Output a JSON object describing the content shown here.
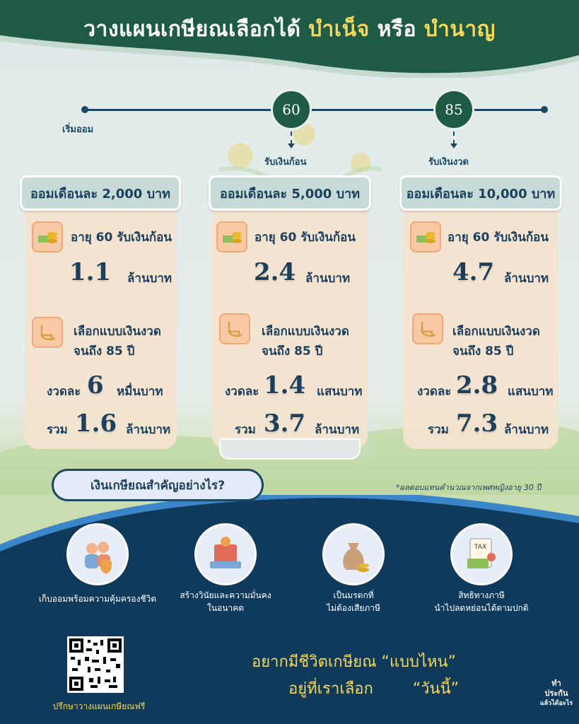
{
  "header": {
    "title_prefix": "วางแผนเกษียณเลือกได้",
    "option_a": "บำเน็จ",
    "connector": "หรือ",
    "option_b": "บำนาญ"
  },
  "timeline": {
    "start_label": "เริ่มออม",
    "age_lump": "60",
    "lump_label": "รับเงินก้อน",
    "age_annuity": "85",
    "annuity_label": "รับเงินงวด"
  },
  "plans": [
    {
      "monthly_label": "ออมเดือนละ 2,000 บาท",
      "lump_text": "อายุ 60 รับเงินก้อน",
      "lump_value": "1.1",
      "lump_unit": "ล้านบาท",
      "annuity_text_1": "เลือกแบบเงินงวด",
      "annuity_text_2": "จนถึง 85 ปี",
      "installment_prefix": "งวดละ",
      "installment_value": "6",
      "installment_unit": "หมื่นบาท",
      "total_prefix": "รวม",
      "total_value": "1.6",
      "total_unit": "ล้านบาท"
    },
    {
      "monthly_label": "ออมเดือนละ 5,000 บาท",
      "lump_text": "อายุ 60 รับเงินก้อน",
      "lump_value": "2.4",
      "lump_unit": "ล้านบาท",
      "annuity_text_1": "เลือกแบบเงินงวด",
      "annuity_text_2": "จนถึง 85 ปี",
      "installment_prefix": "งวดละ",
      "installment_value": "1.4",
      "installment_unit": "แสนบาท",
      "total_prefix": "รวม",
      "total_value": "3.7",
      "total_unit": "ล้านบาท"
    },
    {
      "monthly_label": "ออมเดือนละ 10,000 บาท",
      "lump_text": "อายุ 60 รับเงินก้อน",
      "lump_value": "4.7",
      "lump_unit": "ล้านบาท",
      "annuity_text_1": "เลือกแบบเงินงวด",
      "annuity_text_2": "จนถึง 85 ปี",
      "installment_prefix": "งวดละ",
      "installment_value": "2.8",
      "installment_unit": "แสนบาท",
      "total_prefix": "รวม",
      "total_value": "7.3",
      "total_unit": "ล้านบาท"
    }
  ],
  "note": "*ผลตอบแทนคำนวณจากเพศหญิงอายุ 30 ปี",
  "why": {
    "title": "เงินเกษียณสำคัญอย่างไร?",
    "features": [
      {
        "icon": "family-shield-icon",
        "label_1": "เก็บออมพร้อมความคุ้มครองชีวิต",
        "label_2": ""
      },
      {
        "icon": "security-confidence-icon",
        "label_1": "สร้างวินัยและความมั่นคง",
        "label_2": "ในอนาคต"
      },
      {
        "icon": "money-bag-icon",
        "label_1": "เป็นมรดกที่",
        "label_2": "ไม่ต้องเสียภาษี"
      },
      {
        "icon": "tax-document-icon",
        "label_1": "สิทธิทางภาษี",
        "label_2": "นำไปลดหย่อนได้ตามปกติ"
      }
    ]
  },
  "footer": {
    "qr_caption": "ปรึกษาวางแผนเกษียณฟรี",
    "slogan_1": "อยากมีชีวิตเกษียณ “แบบไหน”",
    "slogan_2": "อยู่ที่เราเลือก        “วันนี้”",
    "brand_1": "ทำ",
    "brand_2": "ประกัน",
    "brand_3": "แล้วได้อะไร"
  },
  "colors": {
    "header_green": "#1f5a44",
    "navy": "#1c3f5c",
    "yellow": "#f4d75c",
    "card": "#f4e3d0",
    "bottom_blue": "#0f3a5c"
  }
}
